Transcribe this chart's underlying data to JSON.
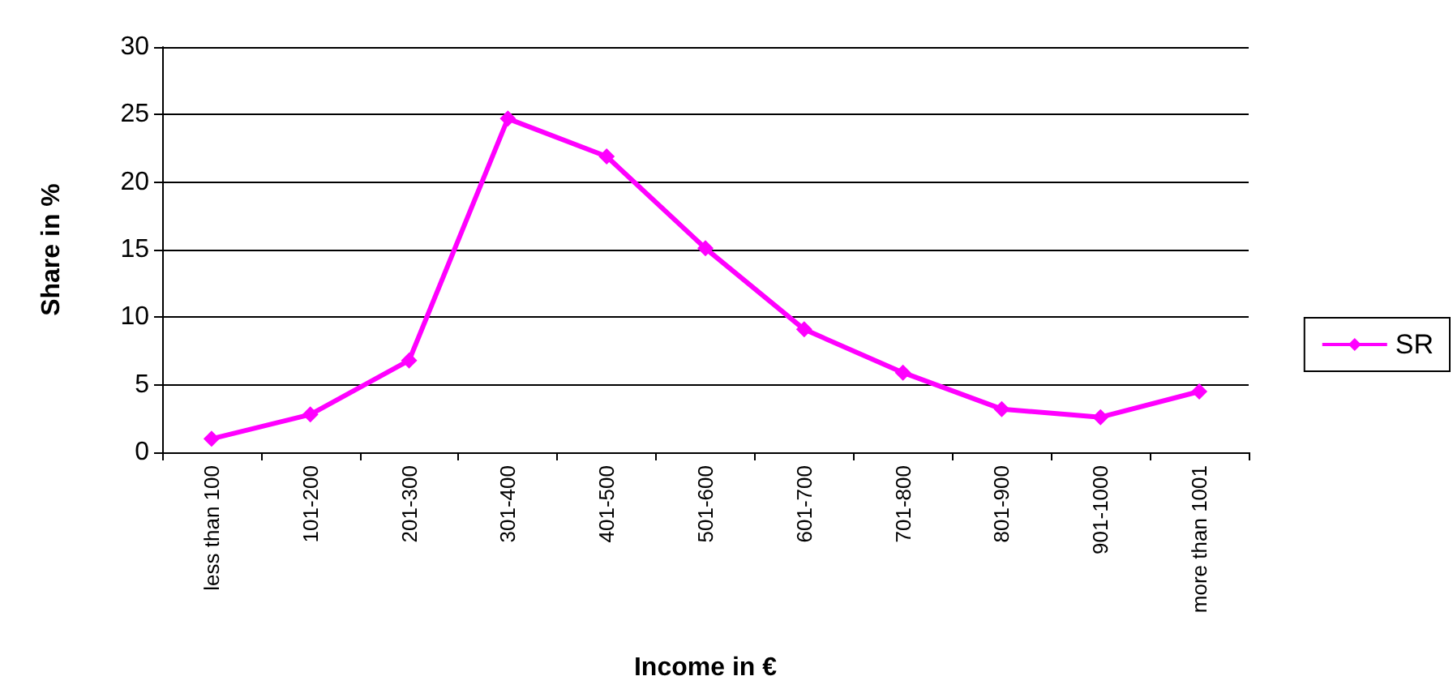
{
  "chart_data": {
    "type": "line",
    "xlabel": "Income in €",
    "ylabel": "Share in %",
    "categories": [
      "less than 100",
      "101-200",
      "201-300",
      "301-400",
      "401-500",
      "501-600",
      "601-700",
      "701-800",
      "801-900",
      "901-1000",
      "more than 1001"
    ],
    "series": [
      {
        "name": "SR",
        "color": "#ff00ff",
        "values": [
          1.0,
          2.8,
          6.8,
          24.7,
          21.9,
          15.1,
          9.1,
          5.9,
          3.2,
          2.6,
          4.5
        ]
      }
    ],
    "ylim": [
      0,
      30
    ],
    "yticks": [
      0,
      5,
      10,
      15,
      20,
      25,
      30
    ],
    "grid": "y",
    "legend": "right",
    "marker": "diamond",
    "line_style": "solid"
  }
}
